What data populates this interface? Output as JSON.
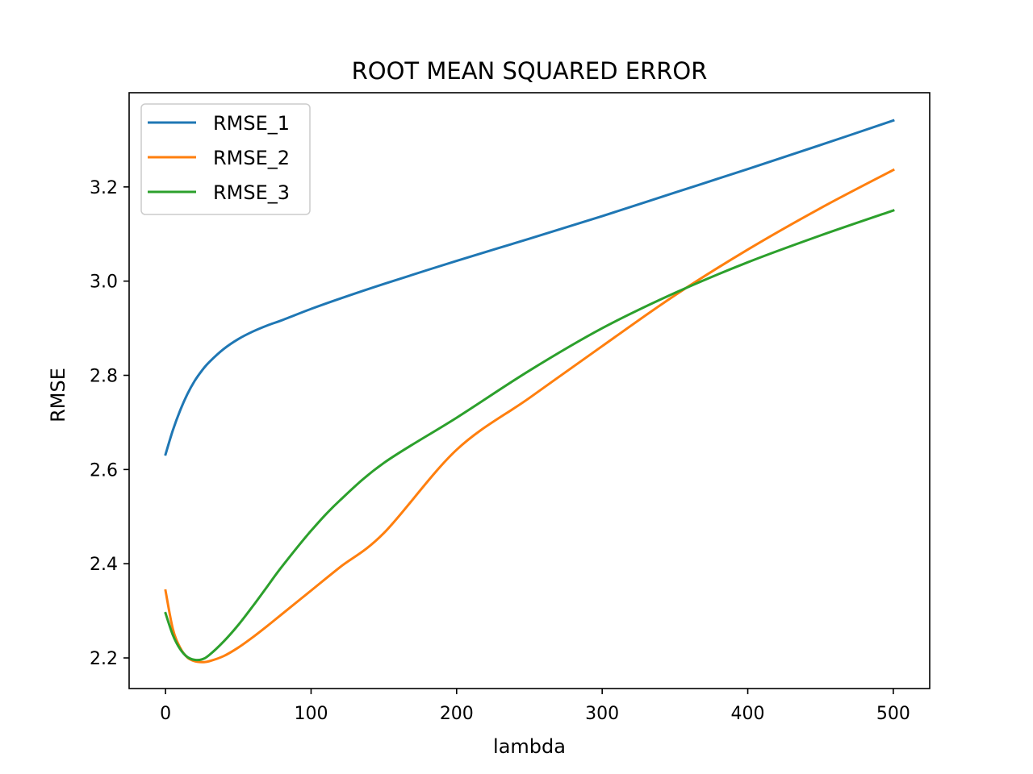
{
  "chart_data": {
    "type": "line",
    "title": "ROOT MEAN SQUARED ERROR",
    "xlabel": "lambda",
    "ylabel": "RMSE",
    "xlim": [
      -25,
      525
    ],
    "ylim": [
      2.135,
      3.4
    ],
    "xticks": [
      0,
      100,
      200,
      300,
      400,
      500
    ],
    "xtick_labels": [
      "0",
      "100",
      "200",
      "300",
      "400",
      "500"
    ],
    "yticks": [
      2.2,
      2.4,
      2.6,
      2.8,
      3.0,
      3.2
    ],
    "ytick_labels": [
      "2.2",
      "2.4",
      "2.6",
      "2.8",
      "3.0",
      "3.2"
    ],
    "grid": false,
    "legend_position": "top-left",
    "x": [
      0,
      5,
      10,
      15,
      20,
      25,
      30,
      40,
      50,
      60,
      70,
      80,
      100,
      120,
      150,
      200,
      250,
      300,
      350,
      400,
      450,
      500
    ],
    "series": [
      {
        "name": "RMSE_1",
        "color": "#1f77b4",
        "values": [
          2.632,
          2.683,
          2.725,
          2.76,
          2.788,
          2.81,
          2.828,
          2.856,
          2.877,
          2.893,
          2.906,
          2.917,
          2.941,
          2.963,
          2.994,
          3.043,
          3.09,
          3.138,
          3.188,
          3.238,
          3.289,
          3.341
        ]
      },
      {
        "name": "RMSE_2",
        "color": "#ff7f0e",
        "values": [
          2.343,
          2.262,
          2.222,
          2.201,
          2.193,
          2.191,
          2.193,
          2.204,
          2.222,
          2.244,
          2.268,
          2.293,
          2.343,
          2.393,
          2.465,
          2.642,
          2.752,
          2.862,
          2.97,
          3.067,
          3.155,
          3.236
        ]
      },
      {
        "name": "RMSE_3",
        "color": "#2ca02c",
        "values": [
          2.295,
          2.249,
          2.219,
          2.202,
          2.196,
          2.197,
          2.206,
          2.235,
          2.27,
          2.31,
          2.352,
          2.394,
          2.47,
          2.535,
          2.614,
          2.71,
          2.81,
          2.9,
          2.975,
          3.04,
          3.097,
          3.15
        ]
      }
    ]
  }
}
